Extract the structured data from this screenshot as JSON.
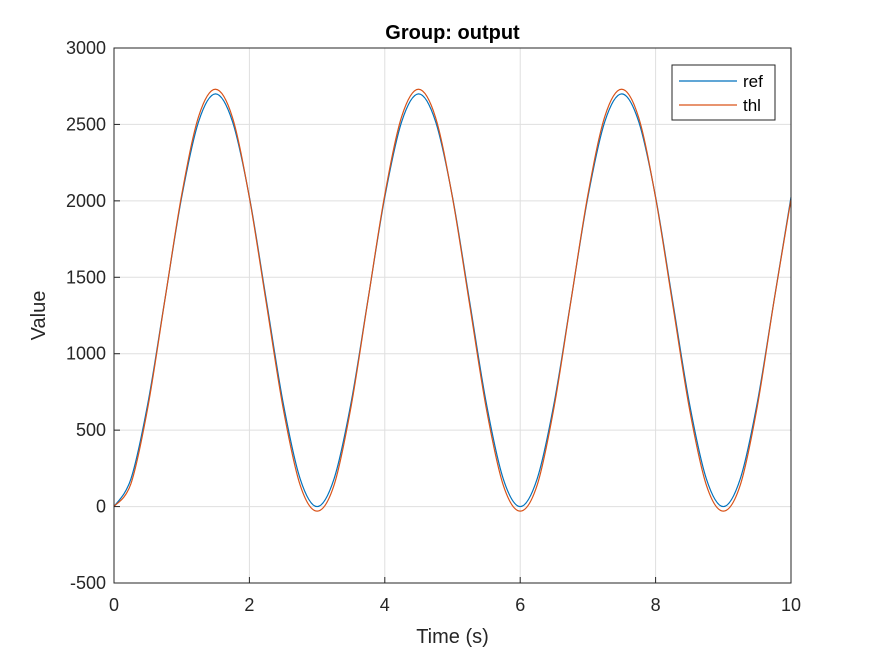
{
  "chart_data": {
    "type": "line",
    "title": "Group: output",
    "xlabel": "Time (s)",
    "ylabel": "Value",
    "xlim": [
      0,
      10
    ],
    "ylim": [
      -500,
      3000
    ],
    "xticks": [
      0,
      2,
      4,
      6,
      8,
      10
    ],
    "yticks": [
      -500,
      0,
      500,
      1000,
      1500,
      2000,
      2500,
      3000
    ],
    "grid": true,
    "legend_position": "top-right",
    "x": [
      0,
      0.25,
      0.5,
      0.75,
      1.0,
      1.25,
      1.5,
      1.75,
      2.0,
      2.25,
      2.5,
      2.75,
      3.0,
      3.25,
      3.5,
      3.75,
      4.0,
      4.25,
      4.5,
      4.75,
      5.0,
      5.25,
      5.5,
      5.75,
      6.0,
      6.25,
      6.5,
      6.75,
      7.0,
      7.25,
      7.5,
      7.75,
      8.0,
      8.25,
      8.5,
      8.75,
      9.0,
      9.25,
      9.5,
      9.75,
      10.0
    ],
    "series": [
      {
        "name": "ref",
        "color": "#0072BD",
        "values": [
          0,
          181,
          675,
          1350,
          2025,
          2519,
          2700,
          2519,
          2025,
          1350,
          675,
          181,
          0,
          181,
          675,
          1350,
          2025,
          2519,
          2700,
          2519,
          2025,
          1350,
          675,
          181,
          0,
          181,
          675,
          1350,
          2025,
          2519,
          2700,
          2519,
          2025,
          1350,
          675,
          181,
          0,
          181,
          675,
          1350,
          2025
        ]
      },
      {
        "name": "thl",
        "color": "#D95319",
        "values": [
          0,
          150,
          650,
          1347,
          2040,
          2552,
          2730,
          2545,
          2020,
          1330,
          640,
          140,
          -30,
          140,
          650,
          1347,
          2040,
          2552,
          2730,
          2545,
          2020,
          1330,
          640,
          140,
          -30,
          140,
          650,
          1347,
          2040,
          2552,
          2730,
          2545,
          2020,
          1330,
          640,
          140,
          -30,
          140,
          650,
          1347,
          2010
        ]
      }
    ]
  }
}
